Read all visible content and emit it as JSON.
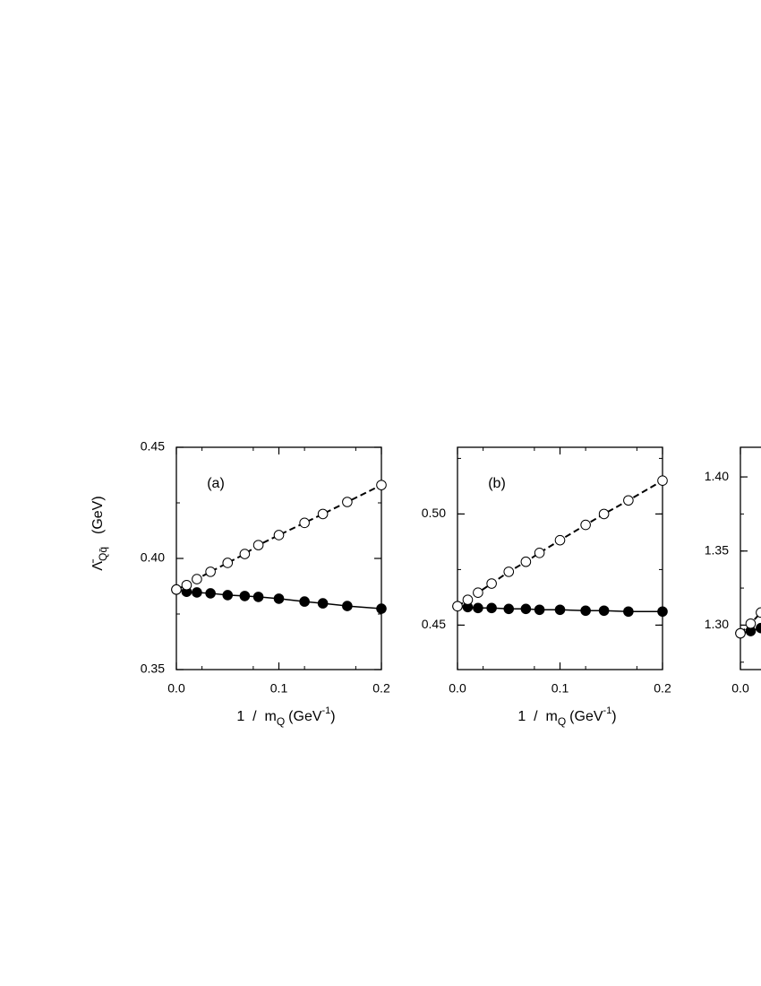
{
  "chart_data": [
    {
      "type": "line",
      "panel_label": "(a)",
      "ylabel": {
        "main": "Λ̄",
        "sub": "Qq̄",
        "unit": "(GeV)"
      },
      "xlabel": {
        "main": "1  /  m",
        "sub": "Q",
        "unit": "(GeV",
        "sup": "-1",
        "close": ")"
      },
      "xlim": [
        0,
        0.2
      ],
      "ylim": [
        0.35,
        0.45
      ],
      "xticks": [
        {
          "value": 0,
          "label": "0.0"
        },
        0.1,
        0.2
      ],
      "yticks": [
        0.35,
        {
          "value": 0.4,
          "label": "0.40"
        },
        0.45
      ],
      "x": [
        0,
        0.01,
        0.02,
        0.0333,
        0.05,
        0.0667,
        0.08,
        0.1,
        0.125,
        0.1429,
        0.1667,
        0.2
      ],
      "series": [
        {
          "color": "#000000",
          "marker": "filled",
          "dashed": false,
          "values": [
            0.386,
            0.385,
            0.3847,
            0.3843,
            0.3835,
            0.3831,
            0.3827,
            0.3819,
            0.3806,
            0.3798,
            0.3786,
            0.3774
          ]
        },
        {
          "color": "#000000",
          "marker": "open",
          "dashed": true,
          "values": [
            0.386,
            0.388,
            0.3907,
            0.394,
            0.398,
            0.402,
            0.406,
            0.4105,
            0.416,
            0.42,
            0.4254,
            0.433
          ]
        }
      ]
    },
    {
      "type": "line",
      "panel_label": "(b)",
      "xlabel": {
        "main": "1  /  m",
        "sub": "Q",
        "unit": "(GeV",
        "sup": "-1",
        "close": ")"
      },
      "xlim": [
        0,
        0.2
      ],
      "ylim": [
        0.43,
        0.53
      ],
      "xticks": [
        {
          "value": 0,
          "label": "0.0"
        },
        0.1,
        0.2
      ],
      "yticks": [
        0.45,
        {
          "value": 0.5,
          "label": "0.50"
        }
      ],
      "x": [
        0,
        0.01,
        0.02,
        0.0333,
        0.05,
        0.0667,
        0.08,
        0.1,
        0.125,
        0.1429,
        0.1667,
        0.2
      ],
      "series": [
        {
          "color": "#000000",
          "marker": "filled",
          "dashed": false,
          "values": [
            0.4585,
            0.4581,
            0.4577,
            0.4577,
            0.4573,
            0.4573,
            0.4569,
            0.4569,
            0.4565,
            0.4565,
            0.4561,
            0.4561
          ]
        },
        {
          "color": "#000000",
          "marker": "open",
          "dashed": true,
          "values": [
            0.4585,
            0.4614,
            0.4646,
            0.4687,
            0.474,
            0.4785,
            0.4825,
            0.4882,
            0.4951,
            0.5,
            0.5061,
            0.515
          ]
        }
      ]
    },
    {
      "type": "line",
      "xlim": [
        0,
        0.2
      ],
      "ylim": [
        1.27,
        1.42
      ],
      "xticks": [
        {
          "value": 0,
          "label": "0.0"
        }
      ],
      "yticks": [
        {
          "value": 1.3,
          "label": "1.30"
        },
        1.35,
        {
          "value": 1.4,
          "label": "1.40"
        }
      ],
      "x": [
        0,
        0.01,
        0.02
      ],
      "series": [
        {
          "color": "#000000",
          "marker": "filled",
          "dashed": false,
          "values": [
            1.2945,
            1.296,
            1.298
          ]
        },
        {
          "color": "#000000",
          "marker": "open",
          "dashed": true,
          "values": [
            1.2945,
            1.301,
            1.3085
          ]
        }
      ]
    }
  ]
}
